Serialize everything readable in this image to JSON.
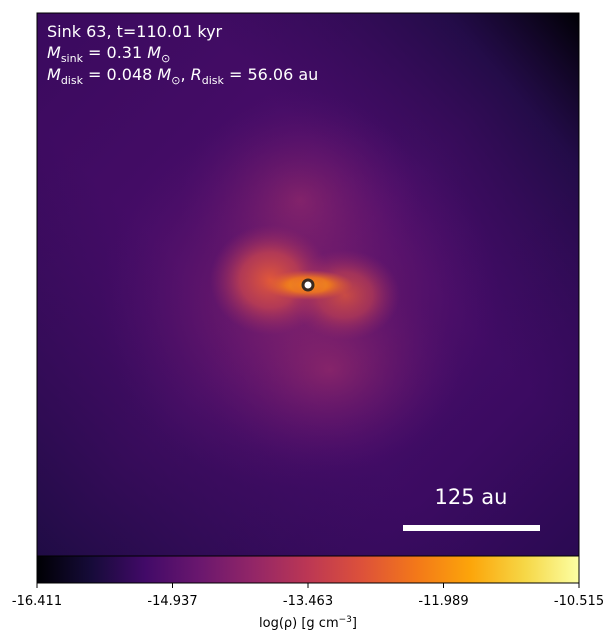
{
  "chart_data": {
    "type": "density-map",
    "annotations": [
      [
        "Sink 63, t=110.01 kyr"
      ],
      [
        "M",
        "sink",
        " = 0.31 ",
        "M",
        "⊙"
      ],
      [
        "M",
        "disk",
        " = 0.048 ",
        "M",
        "⊙",
        ", ",
        "R",
        "disk",
        " = 56.06 au"
      ]
    ],
    "scale_bar": {
      "label": "125 au"
    },
    "colormap": "inferno",
    "clim": [
      -16.411,
      -10.515
    ],
    "cticks": [
      -16.411,
      -14.937,
      -13.463,
      -11.989,
      -10.515
    ],
    "colorbar_label": [
      "log(ρ) [g cm",
      "−3",
      "]"
    ]
  }
}
